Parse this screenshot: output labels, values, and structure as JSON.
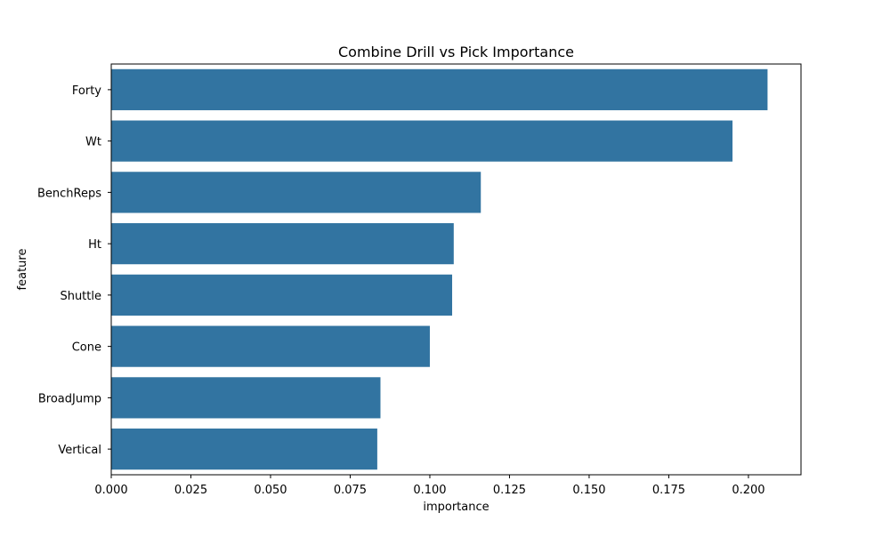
{
  "chart_data": {
    "type": "bar",
    "orientation": "horizontal",
    "title": "Combine Drill vs Pick Importance",
    "xlabel": "importance",
    "ylabel": "feature",
    "categories": [
      "Forty",
      "Wt",
      "BenchReps",
      "Ht",
      "Shuttle",
      "Cone",
      "BroadJump",
      "Vertical"
    ],
    "values": [
      0.206,
      0.195,
      0.116,
      0.1075,
      0.107,
      0.1,
      0.0845,
      0.0835
    ],
    "xlim": [
      0,
      0.2165
    ],
    "xticks": [
      0.0,
      0.025,
      0.05,
      0.075,
      0.1,
      0.125,
      0.15,
      0.175,
      0.2
    ],
    "xtick_labels": [
      "0.000",
      "0.025",
      "0.050",
      "0.075",
      "0.100",
      "0.125",
      "0.150",
      "0.175",
      "0.200"
    ],
    "bar_color": "#3274a1",
    "grid": false,
    "legend": "none"
  }
}
